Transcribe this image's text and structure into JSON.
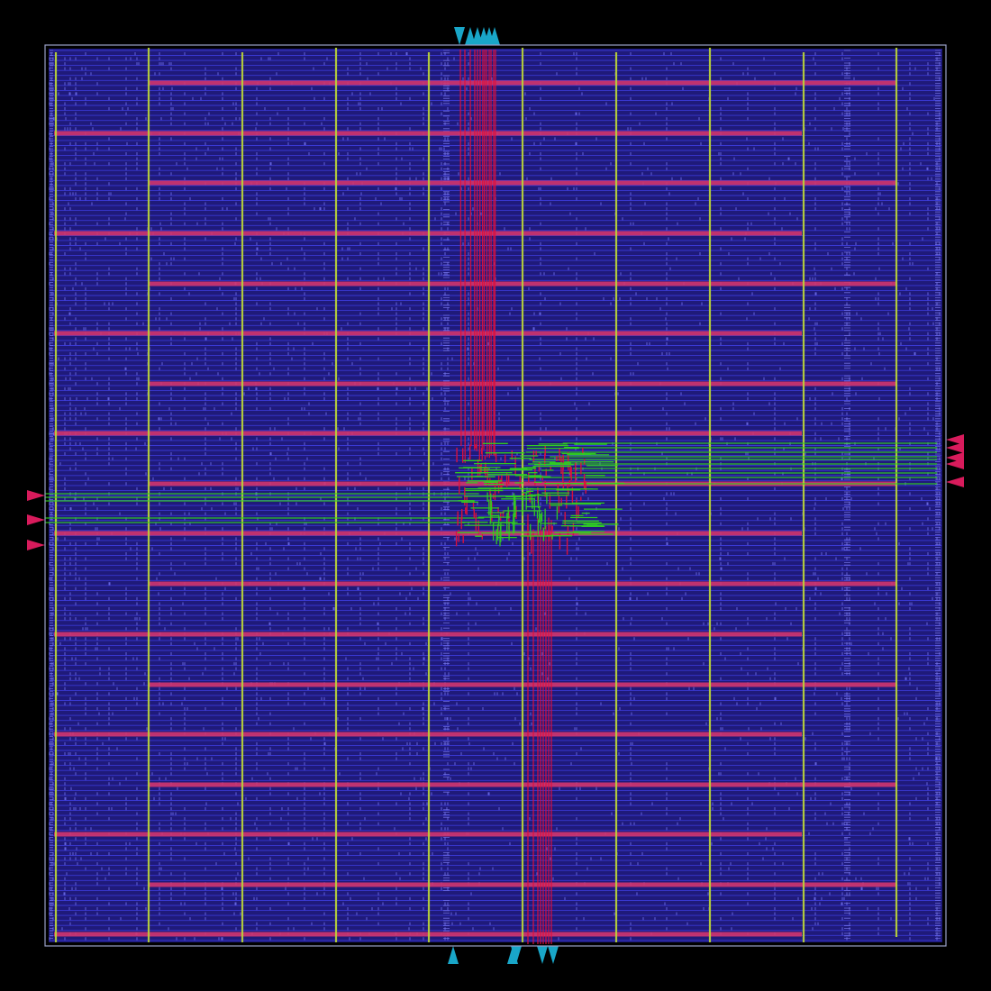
{
  "view": {
    "kind": "chip-layout",
    "background": "#000000"
  },
  "colors": {
    "die_outline": "#9aa0c8",
    "core_fill": "#1f1a7a",
    "row_line": "#3b3ad8",
    "cell_tick": "#6a6ae6",
    "vertical_power_strap": "#b7d13a",
    "horizontal_power_strap": "#d0356e",
    "signal_route_red": "#e0103a",
    "signal_route_green": "#2fd21e",
    "io_pin_cyan": "#19a6c8",
    "io_pin_magenta": "#d81b5c"
  },
  "layers": [
    {
      "id": "core-area",
      "color_key": "core_fill"
    },
    {
      "id": "standard-cell-rows",
      "color_key": "row_line"
    },
    {
      "id": "vertical-power-straps",
      "color_key": "vertical_power_strap"
    },
    {
      "id": "horizontal-power-straps",
      "color_key": "horizontal_power_strap"
    },
    {
      "id": "signal-routes",
      "color_key": "signal_route_red"
    },
    {
      "id": "io-pins",
      "color_key": "io_pin_cyan"
    }
  ],
  "io_pins": {
    "top_count": 6,
    "bottom_count": 5,
    "left_count": 3,
    "right_count": 5
  }
}
